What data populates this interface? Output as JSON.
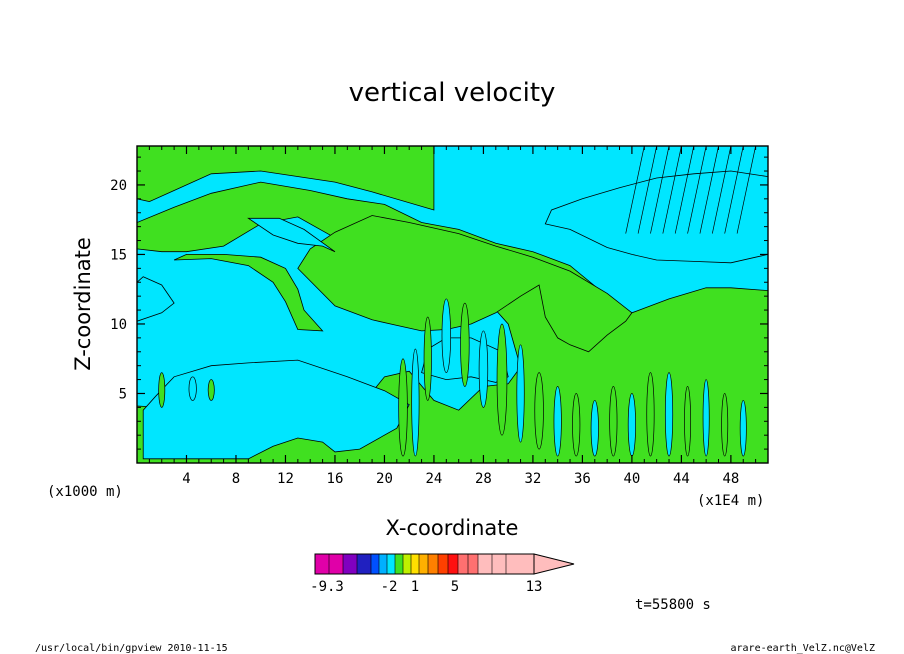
{
  "chart_data": {
    "type": "heatmap",
    "title": "vertical velocity",
    "xlabel": "X-coordinate",
    "ylabel": "Z-coordinate",
    "x_unit_left": "(x1000 m)",
    "x_unit_right": "(x1E4 m)",
    "x_ticks": [
      "4",
      "8",
      "12",
      "16",
      "20",
      "24",
      "28",
      "32",
      "36",
      "40",
      "44",
      "48"
    ],
    "y_ticks": [
      "5",
      "10",
      "15",
      "20"
    ],
    "x_tick_values": [
      4,
      8,
      12,
      16,
      20,
      24,
      28,
      32,
      36,
      40,
      44,
      48
    ],
    "y_tick_values": [
      5,
      10,
      15,
      20
    ],
    "xlim": [
      0,
      51
    ],
    "ylim": [
      0,
      22.8
    ],
    "time_label": "t=55800 s",
    "colorbar": {
      "labels": [
        "-9.3",
        "-2",
        "1",
        "5",
        "13"
      ],
      "colors": [
        "#e000a8",
        "#e000a8",
        "#8000c0",
        "#2020c0",
        "#0050ff",
        "#00b0ff",
        "#00e6ff",
        "#40e020",
        "#c0f000",
        "#ffe000",
        "#ffb000",
        "#ff8000",
        "#ff4000",
        "#ff1010",
        "#ff7070",
        "#ff7070",
        "#ffbdbd",
        "#ffbdbd",
        "#ffbdbd"
      ],
      "extend_arrow_color": "#ffbdbd"
    },
    "shaded_levels": {
      "negative_color": "#00e6ff",
      "positive_color": "#40e020"
    },
    "green_regions": [
      {
        "desc": "upper-left band",
        "poly": [
          [
            0,
            22.8
          ],
          [
            15,
            22.8
          ],
          [
            24,
            22.8
          ],
          [
            24,
            18.2
          ],
          [
            19,
            19.5
          ],
          [
            16,
            20.2
          ],
          [
            10,
            21
          ],
          [
            6,
            20.8
          ],
          [
            3,
            19.6
          ],
          [
            1,
            18.8
          ],
          [
            0,
            19
          ]
        ]
      },
      {
        "desc": "main diagonal green band",
        "poly": [
          [
            0,
            17.3
          ],
          [
            3,
            18.4
          ],
          [
            6,
            19.4
          ],
          [
            10,
            20.2
          ],
          [
            14,
            19.6
          ],
          [
            17,
            19.0
          ],
          [
            20,
            18.6
          ],
          [
            23,
            17.3
          ],
          [
            26,
            16.8
          ],
          [
            29,
            15.8
          ],
          [
            32,
            15.2
          ],
          [
            35,
            14.2
          ],
          [
            38,
            12.0
          ],
          [
            40,
            10.8
          ],
          [
            43,
            11.8
          ],
          [
            46,
            12.6
          ],
          [
            48,
            12.6
          ],
          [
            51,
            12.4
          ],
          [
            51,
            0
          ],
          [
            0,
            0
          ],
          [
            0,
            4.1
          ],
          [
            2,
            4.0
          ],
          [
            4,
            3.7
          ],
          [
            6,
            3.6
          ],
          [
            8,
            3.6
          ],
          [
            10,
            3.3
          ],
          [
            12,
            2.8
          ],
          [
            14,
            2.8
          ],
          [
            16,
            3.0
          ],
          [
            18,
            4.0
          ],
          [
            20,
            6.2
          ],
          [
            22,
            6.6
          ],
          [
            24,
            4.5
          ],
          [
            26,
            3.8
          ],
          [
            28,
            5.5
          ],
          [
            30,
            5.7
          ],
          [
            31,
            6.9
          ],
          [
            30,
            10
          ],
          [
            28,
            12
          ],
          [
            26,
            12.8
          ],
          [
            24,
            12.2
          ],
          [
            22,
            12.6
          ],
          [
            20,
            12.8
          ],
          [
            19,
            14.8
          ],
          [
            16,
            16.2
          ],
          [
            13,
            17.7
          ],
          [
            10,
            17.2
          ],
          [
            7,
            15.6
          ],
          [
            4,
            15.2
          ],
          [
            2,
            15.2
          ],
          [
            0,
            15.4
          ]
        ]
      },
      {
        "desc": "green lobe center",
        "poly": [
          [
            13,
            14.0
          ],
          [
            16,
            11.3
          ],
          [
            19,
            10.3
          ],
          [
            21,
            9.9
          ],
          [
            23,
            9.5
          ],
          [
            25,
            9.6
          ],
          [
            27,
            10.0
          ],
          [
            29,
            10.8
          ],
          [
            31,
            12.0
          ],
          [
            32.5,
            12.8
          ],
          [
            33,
            10.5
          ],
          [
            34,
            9.0
          ],
          [
            35,
            8.5
          ],
          [
            36.5,
            8.0
          ],
          [
            38,
            9.2
          ],
          [
            39.5,
            10.2
          ],
          [
            40,
            10.8
          ],
          [
            38,
            12.2
          ],
          [
            35,
            13.8
          ],
          [
            32,
            14.8
          ],
          [
            29,
            15.6
          ],
          [
            26,
            16.5
          ],
          [
            22,
            17.3
          ],
          [
            19,
            17.8
          ],
          [
            16,
            16.6
          ],
          [
            14,
            15.4
          ]
        ]
      },
      {
        "desc": "left lobe",
        "poly": [
          [
            3,
            14.6
          ],
          [
            6,
            14.7
          ],
          [
            9,
            14.2
          ],
          [
            11,
            13.0
          ],
          [
            12,
            11.6
          ],
          [
            13,
            9.6
          ],
          [
            15,
            9.5
          ],
          [
            13.5,
            11
          ],
          [
            13,
            12.5
          ],
          [
            12,
            14
          ],
          [
            10,
            14.8
          ],
          [
            7,
            15.0
          ],
          [
            4,
            15.0
          ]
        ]
      }
    ],
    "blue_regions": [
      {
        "desc": "bottom-left cyan",
        "poly": [
          [
            0.5,
            0.3
          ],
          [
            9,
            0.3
          ],
          [
            11,
            1.2
          ],
          [
            13,
            1.8
          ],
          [
            15,
            1.5
          ],
          [
            16,
            0.8
          ],
          [
            18,
            1.0
          ],
          [
            21,
            2.5
          ],
          [
            22,
            4.2
          ],
          [
            20,
            5.2
          ],
          [
            17,
            6.2
          ],
          [
            13,
            7.4
          ],
          [
            9,
            7.2
          ],
          [
            6,
            7.0
          ],
          [
            3,
            6.2
          ],
          [
            1.5,
            4.8
          ],
          [
            0.5,
            3.8
          ]
        ]
      },
      {
        "desc": "upper-mid cyan",
        "poly": [
          [
            9,
            17.6
          ],
          [
            11,
            16.4
          ],
          [
            13,
            15.8
          ],
          [
            15,
            15.6
          ],
          [
            16,
            15.2
          ],
          [
            13.5,
            16.8
          ],
          [
            11.5,
            17.6
          ]
        ]
      },
      {
        "desc": "right cyan pocket",
        "poly": [
          [
            33,
            17.2
          ],
          [
            35,
            16.8
          ],
          [
            38,
            15.5
          ],
          [
            40,
            15.0
          ],
          [
            42,
            14.6
          ],
          [
            45,
            14.5
          ],
          [
            48,
            14.4
          ],
          [
            50,
            14.8
          ],
          [
            51,
            15.0
          ],
          [
            51,
            20.6
          ],
          [
            48,
            21.0
          ],
          [
            45,
            20.8
          ],
          [
            42,
            20.5
          ],
          [
            39,
            19.8
          ],
          [
            36,
            19.0
          ],
          [
            33.5,
            18.2
          ]
        ]
      },
      {
        "desc": "mid cyan",
        "poly": [
          [
            23,
            6.5
          ],
          [
            25,
            6.0
          ],
          [
            27,
            6.2
          ],
          [
            29,
            5.8
          ],
          [
            30,
            6.2
          ],
          [
            29.5,
            8.0
          ],
          [
            27,
            9.0
          ],
          [
            25,
            9.0
          ],
          [
            23.5,
            8.2
          ]
        ]
      },
      {
        "desc": "left cyan strip",
        "poly": [
          [
            0,
            10.2
          ],
          [
            2,
            10.8
          ],
          [
            3,
            11.5
          ],
          [
            2,
            12.8
          ],
          [
            0.5,
            13.4
          ],
          [
            0,
            13.0
          ]
        ]
      }
    ]
  }
}
